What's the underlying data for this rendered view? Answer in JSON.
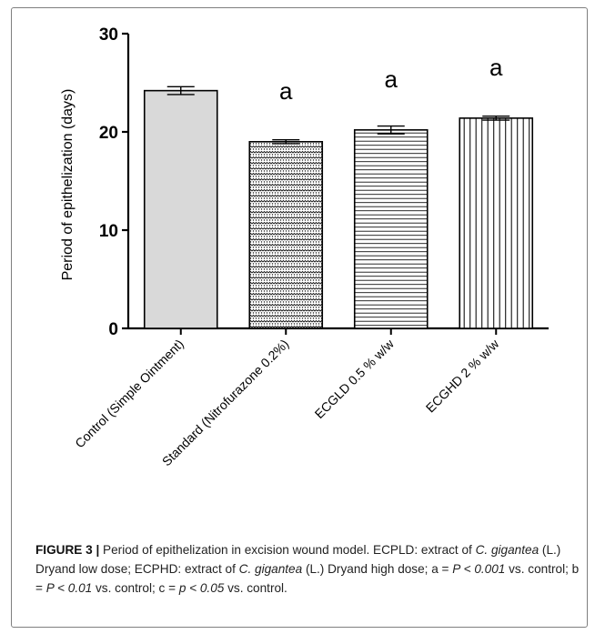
{
  "chart_data": {
    "type": "bar",
    "categories": [
      "Control (Simple Ointment)",
      "Standard (Nitrofurazone 0.2%)",
      "ECGLD 0.5 % w/w",
      "ECGHD 2 % w/w"
    ],
    "values": [
      24.2,
      19.0,
      20.2,
      21.4
    ],
    "errors": [
      0.4,
      0.2,
      0.4,
      0.2
    ],
    "significance": [
      "",
      "a",
      "a",
      "a"
    ],
    "patterns": [
      "solid-gray",
      "dots",
      "horizontal-lines",
      "vertical-lines"
    ],
    "ylabel": "Period of epithelization (days)",
    "xlabel": "",
    "ylim": [
      0,
      30
    ],
    "yticks": [
      0,
      10,
      20,
      30
    ],
    "grid": false,
    "colors": {
      "fill_control": "#d9d9d9",
      "stroke": "#000000"
    }
  },
  "caption": {
    "label": "FIGURE 3 |",
    "segments": [
      {
        "t": " Period of epithelization in excision wound model. ECPLD: extract of ",
        "s": "n"
      },
      {
        "t": "C. gigantea",
        "s": "i"
      },
      {
        "t": " (L.) Dryand low dose; ECPHD: extract of ",
        "s": "n"
      },
      {
        "t": "C. gigantea",
        "s": "i"
      },
      {
        "t": " (L.) Dryand high dose; a = ",
        "s": "n"
      },
      {
        "t": "P < 0.001",
        "s": "i"
      },
      {
        "t": " vs. control; b = ",
        "s": "n"
      },
      {
        "t": "P < 0.01",
        "s": "i"
      },
      {
        "t": " vs. control; c = ",
        "s": "n"
      },
      {
        "t": "p < 0.05",
        "s": "i"
      },
      {
        "t": " vs. control.",
        "s": "n"
      }
    ]
  }
}
